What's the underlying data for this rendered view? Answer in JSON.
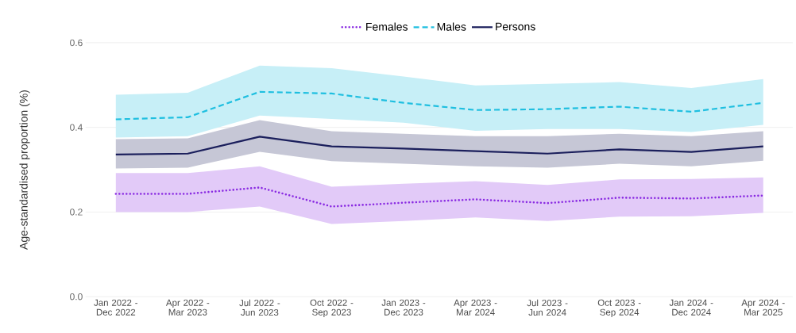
{
  "chart_data": {
    "type": "line",
    "ylabel": "Age-standardised proportion (%)",
    "categories": [
      "Jan 2022 - Dec 2022",
      "Apr 2022 - Mar 2023",
      "Jul 2022 - Jun 2023",
      "Oct 2022 - Sep 2023",
      "Jan 2023 - Dec 2023",
      "Apr 2023 - Mar 2024",
      "Jul 2023 - Jun 2024",
      "Oct 2023 - Sep 2024",
      "Jan 2024 - Dec 2024",
      "Apr 2024 - Mar 2025"
    ],
    "series": [
      {
        "name": "Females",
        "color": "#8a2be2",
        "line_style": "dotted",
        "values": [
          0.243,
          0.243,
          0.258,
          0.213,
          0.222,
          0.23,
          0.221,
          0.234,
          0.232,
          0.239
        ],
        "lower": [
          0.2,
          0.2,
          0.213,
          0.172,
          0.179,
          0.187,
          0.179,
          0.189,
          0.19,
          0.198
        ],
        "upper": [
          0.292,
          0.292,
          0.308,
          0.26,
          0.267,
          0.273,
          0.264,
          0.277,
          0.278,
          0.282
        ]
      },
      {
        "name": "Males",
        "color": "#1fbfe0",
        "line_style": "dashed",
        "values": [
          0.419,
          0.424,
          0.484,
          0.48,
          0.458,
          0.441,
          0.443,
          0.449,
          0.437,
          0.458
        ],
        "lower": [
          0.376,
          0.379,
          0.428,
          0.42,
          0.411,
          0.392,
          0.396,
          0.396,
          0.389,
          0.406
        ],
        "upper": [
          0.477,
          0.482,
          0.546,
          0.54,
          0.52,
          0.499,
          0.503,
          0.507,
          0.493,
          0.514
        ]
      },
      {
        "name": "Persons",
        "color": "#1b1f5c",
        "line_style": "solid",
        "values": [
          0.336,
          0.338,
          0.378,
          0.355,
          0.35,
          0.344,
          0.338,
          0.348,
          0.342,
          0.355
        ],
        "lower": [
          0.303,
          0.305,
          0.342,
          0.32,
          0.314,
          0.308,
          0.305,
          0.314,
          0.308,
          0.321
        ],
        "upper": [
          0.372,
          0.374,
          0.417,
          0.391,
          0.385,
          0.379,
          0.379,
          0.385,
          0.379,
          0.391
        ]
      }
    ],
    "ylim": [
      0,
      0.6
    ],
    "yticks": [
      {
        "value": 0,
        "label": "0.0"
      },
      {
        "value": 0.2,
        "label": "0.2"
      },
      {
        "value": 0.4,
        "label": "0.4"
      },
      {
        "value": 0.6,
        "label": "0.6"
      }
    ],
    "grid": "y",
    "legend": "top",
    "marker": "none"
  }
}
